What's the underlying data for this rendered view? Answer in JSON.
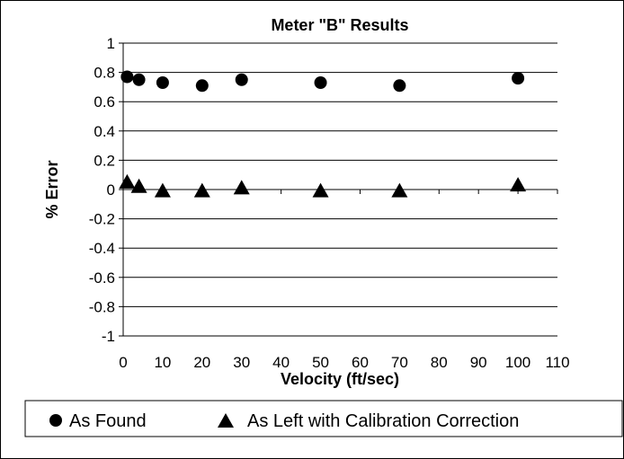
{
  "chart_data": {
    "type": "scatter",
    "title": "Meter \"B\" Results",
    "xlabel": "Velocity (ft/sec)",
    "ylabel": "% Error",
    "xlim": [
      0,
      110
    ],
    "ylim": [
      -1,
      1
    ],
    "x_ticks": [
      "0",
      "10",
      "20",
      "30",
      "40",
      "50",
      "60",
      "70",
      "80",
      "90",
      "100",
      "110"
    ],
    "y_ticks": [
      "1",
      "0.8",
      "0.6",
      "0.4",
      "0.2",
      "0",
      "-0.2",
      "-0.4",
      "-0.6",
      "-0.8",
      "-1"
    ],
    "grid": "horizontal",
    "legend_position": "bottom",
    "series": [
      {
        "name": "As Found",
        "marker": "circle",
        "color": "#000000",
        "x": [
          1,
          4,
          10,
          20,
          30,
          50,
          70,
          100
        ],
        "y": [
          0.77,
          0.75,
          0.73,
          0.71,
          0.75,
          0.73,
          0.71,
          0.76
        ]
      },
      {
        "name": "As Left with Calibration Correction",
        "marker": "triangle",
        "color": "#000000",
        "x": [
          1,
          4,
          10,
          20,
          30,
          50,
          70,
          100
        ],
        "y": [
          0.05,
          0.02,
          -0.01,
          -0.01,
          0.01,
          -0.01,
          -0.01,
          0.03
        ]
      }
    ]
  }
}
